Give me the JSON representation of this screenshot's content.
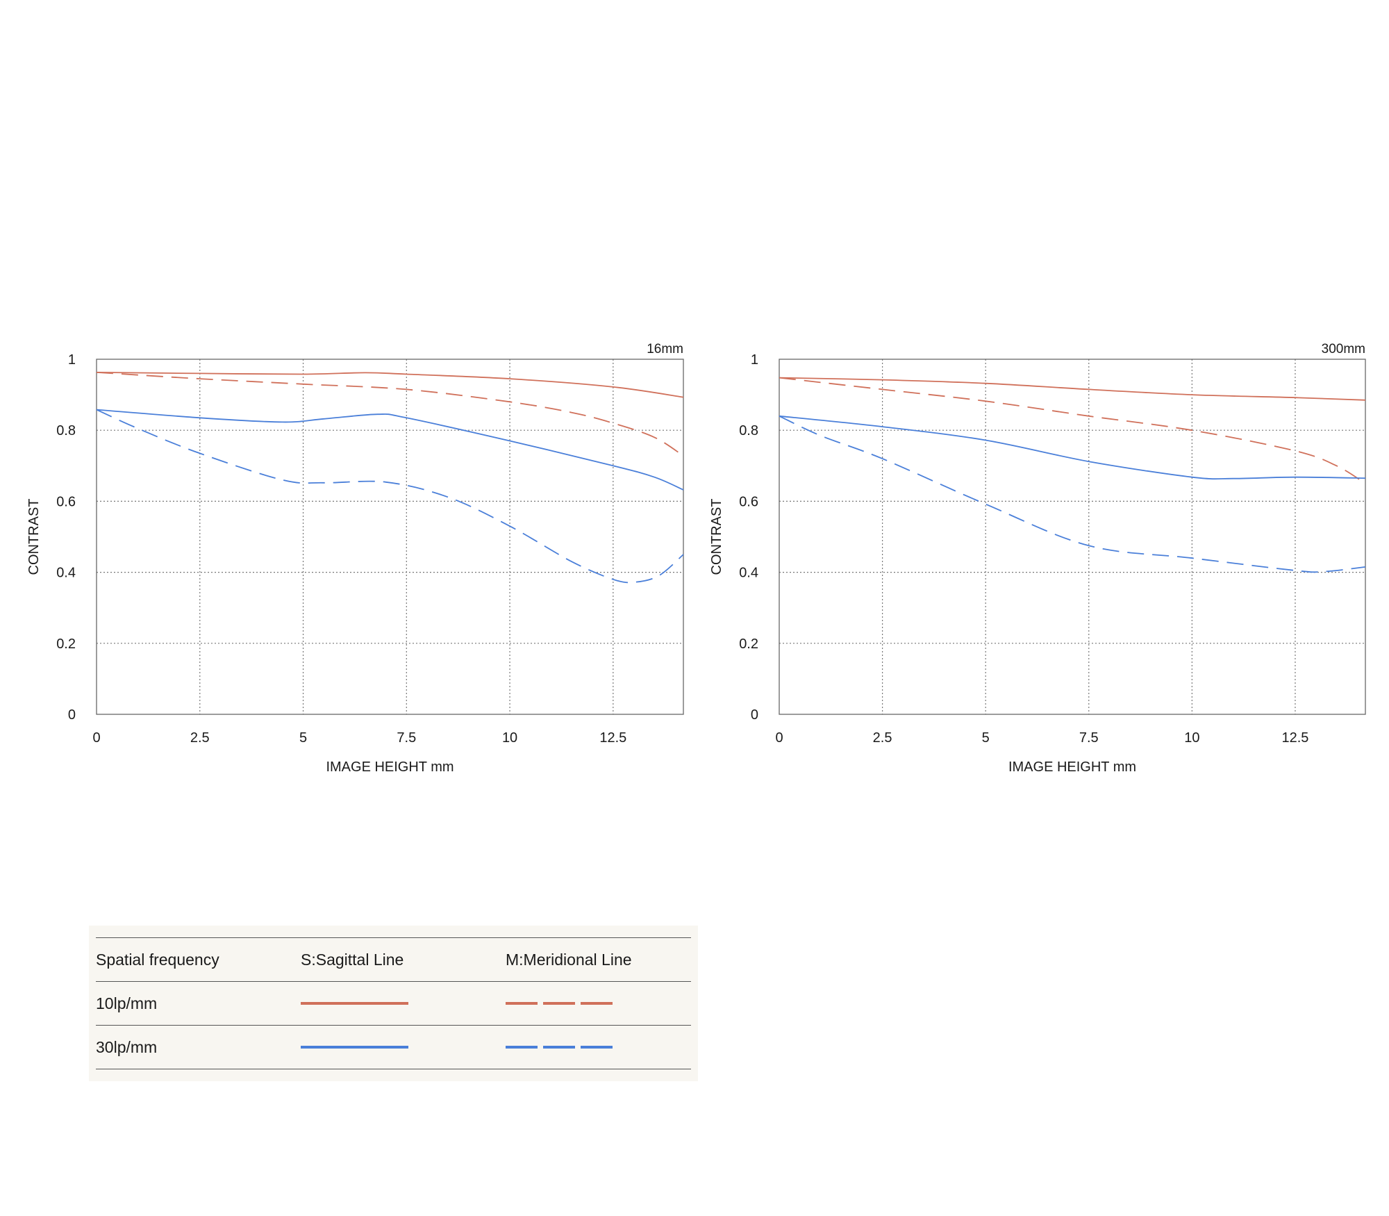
{
  "colors": {
    "red": "#d0705a",
    "blue": "#4a7fd9",
    "legend_bg": "#f8f6f1"
  },
  "chart_data": [
    {
      "type": "line",
      "title": "16mm",
      "xlabel": "IMAGE HEIGHT  mm",
      "ylabel": "CONTRAST",
      "xlim": [
        0,
        14.2
      ],
      "ylim": [
        0,
        1
      ],
      "xticks": [
        0,
        2.5,
        5,
        7.5,
        10,
        12.5
      ],
      "xtick_labels": [
        "0",
        "2.5",
        "5",
        "7.5",
        "10",
        "12.5"
      ],
      "yticks": [
        0,
        0.2,
        0.4,
        0.6,
        0.8,
        1
      ],
      "ytick_labels": [
        "0",
        "0.2",
        "0.4",
        "0.6",
        "0.8",
        "1"
      ],
      "grid": true,
      "series": [
        {
          "name": "10lp/mm S",
          "color": "red",
          "dash": false,
          "x": [
            0,
            2.5,
            5,
            6.5,
            7.5,
            10,
            12.5,
            14.2
          ],
          "y": [
            0.963,
            0.96,
            0.958,
            0.962,
            0.958,
            0.945,
            0.922,
            0.893
          ]
        },
        {
          "name": "10lp/mm M",
          "color": "red",
          "dash": true,
          "x": [
            0,
            2.5,
            5,
            7.5,
            10,
            11.5,
            12.5,
            13.5,
            14.2
          ],
          "y": [
            0.963,
            0.945,
            0.93,
            0.915,
            0.88,
            0.85,
            0.82,
            0.78,
            0.728
          ]
        },
        {
          "name": "30lp/mm S",
          "color": "blue",
          "dash": false,
          "x": [
            0,
            2.5,
            4.5,
            5.5,
            6.8,
            7.5,
            10,
            12.5,
            13.5,
            14.2
          ],
          "y": [
            0.858,
            0.835,
            0.823,
            0.832,
            0.845,
            0.835,
            0.77,
            0.7,
            0.668,
            0.632
          ]
        },
        {
          "name": "30lp/mm M",
          "color": "blue",
          "dash": true,
          "x": [
            0,
            1,
            2.5,
            4.5,
            5.5,
            7,
            8.5,
            10,
            11.5,
            12.5,
            13,
            13.6,
            14.2
          ],
          "y": [
            0.858,
            0.805,
            0.735,
            0.66,
            0.652,
            0.654,
            0.612,
            0.53,
            0.43,
            0.38,
            0.372,
            0.39,
            0.45
          ]
        }
      ]
    },
    {
      "type": "line",
      "title": "300mm",
      "xlabel": "IMAGE HEIGHT  mm",
      "ylabel": "CONTRAST",
      "xlim": [
        0,
        14.2
      ],
      "ylim": [
        0,
        1
      ],
      "xticks": [
        0,
        2.5,
        5,
        7.5,
        10,
        12.5
      ],
      "xtick_labels": [
        "0",
        "2.5",
        "5",
        "7.5",
        "10",
        "12.5"
      ],
      "yticks": [
        0,
        0.2,
        0.4,
        0.6,
        0.8,
        1
      ],
      "ytick_labels": [
        "0",
        "0.2",
        "0.4",
        "0.6",
        "0.8",
        "1"
      ],
      "grid": true,
      "series": [
        {
          "name": "10lp/mm S",
          "color": "red",
          "dash": false,
          "x": [
            0,
            2.5,
            5,
            7.5,
            10,
            12.5,
            14.2
          ],
          "y": [
            0.948,
            0.942,
            0.932,
            0.915,
            0.9,
            0.892,
            0.885
          ]
        },
        {
          "name": "10lp/mm M",
          "color": "red",
          "dash": true,
          "x": [
            0,
            2.5,
            5,
            7.5,
            10,
            12.5,
            13.5,
            14.2
          ],
          "y": [
            0.948,
            0.915,
            0.882,
            0.84,
            0.8,
            0.742,
            0.7,
            0.65
          ]
        },
        {
          "name": "30lp/mm S",
          "color": "blue",
          "dash": false,
          "x": [
            0,
            2.5,
            5,
            7.5,
            10,
            11,
            12.5,
            14.2
          ],
          "y": [
            0.84,
            0.81,
            0.772,
            0.712,
            0.668,
            0.664,
            0.668,
            0.665
          ]
        },
        {
          "name": "30lp/mm M",
          "color": "blue",
          "dash": true,
          "x": [
            0,
            1,
            2.5,
            5,
            7.5,
            10,
            12.5,
            13.2,
            14.2
          ],
          "y": [
            0.84,
            0.785,
            0.72,
            0.592,
            0.475,
            0.44,
            0.405,
            0.402,
            0.415
          ]
        }
      ]
    }
  ],
  "legend": {
    "header": [
      "Spatial frequency",
      "S:Sagittal Line",
      "M:Meridional Line"
    ],
    "rows": [
      {
        "label": "10lp/mm",
        "color": "red"
      },
      {
        "label": "30lp/mm",
        "color": "blue"
      }
    ]
  }
}
